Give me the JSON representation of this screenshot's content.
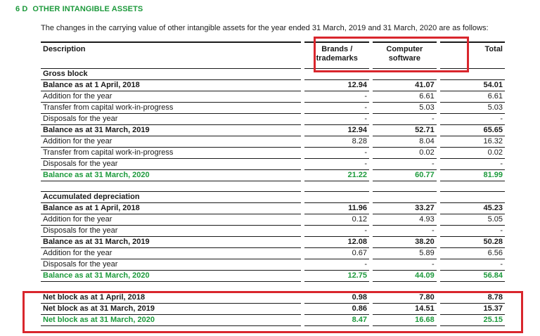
{
  "section": {
    "number": "6 D",
    "title": "OTHER INTANGIBLE ASSETS"
  },
  "intro": "The changes in the carrying value of other intangible assets for the year ended 31 March, 2019 and 31 March, 2020 are as follows:",
  "header": {
    "description": "Description",
    "col1_line1": "Brands /",
    "col1_line2": "trademarks",
    "col2_line1": "Computer",
    "col2_line2": "software",
    "col3": "Total"
  },
  "gross": {
    "title": "Gross block",
    "rows": [
      {
        "label": "Balance as at 1 April, 2018",
        "v1": "12.94",
        "v2": "41.07",
        "v3": "54.01"
      },
      {
        "label": "Addition for the year",
        "v1": "-",
        "v2": "6.61",
        "v3": "6.61"
      },
      {
        "label": "Transfer from capital work-in-progress",
        "v1": "-",
        "v2": "5.03",
        "v3": "5.03"
      },
      {
        "label": "Disposals for the year",
        "v1": "-",
        "v2": "-",
        "v3": "-"
      },
      {
        "label": "Balance as at 31 March, 2019",
        "v1": "12.94",
        "v2": "52.71",
        "v3": "65.65"
      },
      {
        "label": "Addition for the year",
        "v1": "8.28",
        "v2": "8.04",
        "v3": "16.32"
      },
      {
        "label": "Transfer from capital work-in-progress",
        "v1": "-",
        "v2": "0.02",
        "v3": "0.02"
      },
      {
        "label": "Disposals for the year",
        "v1": "-",
        "v2": "-",
        "v3": "-"
      },
      {
        "label": "Balance as at 31 March, 2020",
        "v1": "21.22",
        "v2": "60.77",
        "v3": "81.99"
      }
    ]
  },
  "depreciation": {
    "title": "Accumulated depreciation",
    "rows": [
      {
        "label": "Balance as at 1 April, 2018",
        "v1": "11.96",
        "v2": "33.27",
        "v3": "45.23"
      },
      {
        "label": "Addition for the year",
        "v1": "0.12",
        "v2": "4.93",
        "v3": "5.05"
      },
      {
        "label": "Disposals for the year",
        "v1": "-",
        "v2": "-",
        "v3": "-"
      },
      {
        "label": "Balance as at 31 March, 2019",
        "v1": "12.08",
        "v2": "38.20",
        "v3": "50.28"
      },
      {
        "label": "Addition for the year",
        "v1": "0.67",
        "v2": "5.89",
        "v3": "6.56"
      },
      {
        "label": "Disposals for the year",
        "v1": "-",
        "v2": "-",
        "v3": "-"
      },
      {
        "label": "Balance as at 31 March, 2020",
        "v1": "12.75",
        "v2": "44.09",
        "v3": "56.84"
      }
    ]
  },
  "net": {
    "rows": [
      {
        "label": "Net block as at 1 April, 2018",
        "v1": "0.98",
        "v2": "7.80",
        "v3": "8.78"
      },
      {
        "label": "Net block as at 31 March, 2019",
        "v1": "0.86",
        "v2": "14.51",
        "v3": "15.37"
      },
      {
        "label": "Net block as at 31 March, 2020",
        "v1": "8.47",
        "v2": "16.68",
        "v3": "25.15"
      }
    ]
  },
  "colors": {
    "accent_green": "#1d9a3c",
    "highlight_red": "#d9262d"
  }
}
